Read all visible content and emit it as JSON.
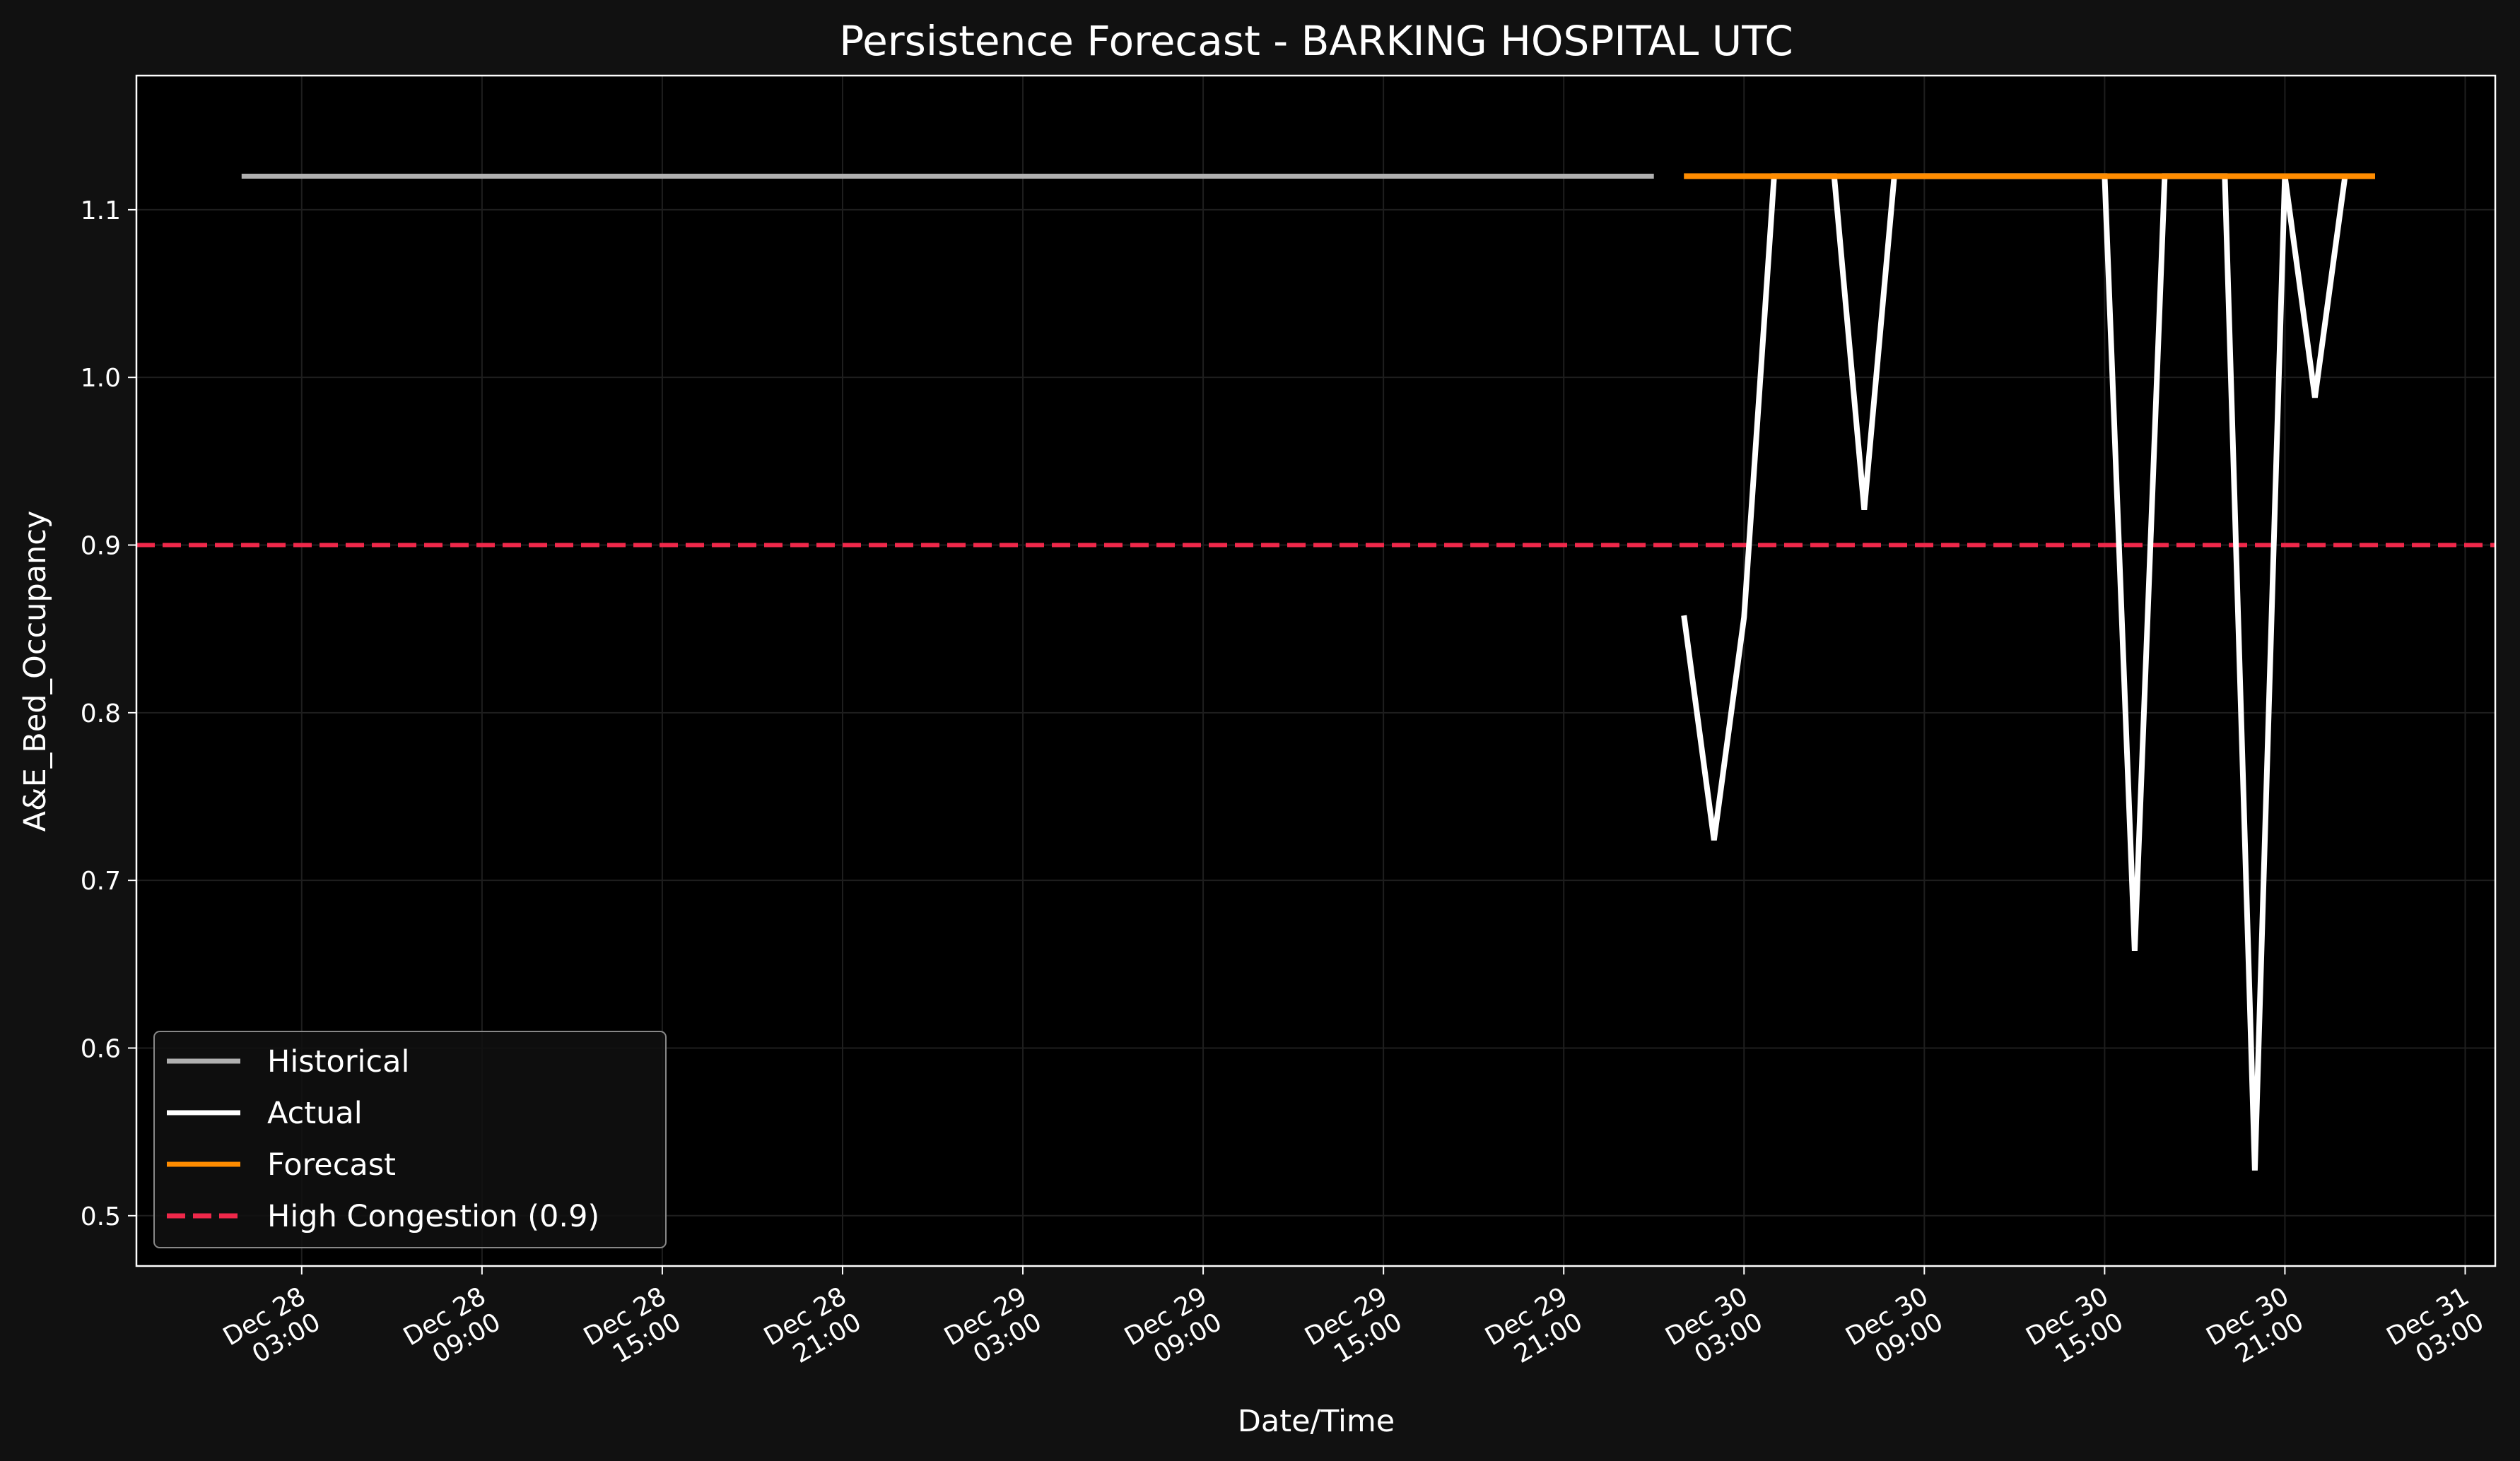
{
  "chart_data": {
    "type": "line",
    "title": "Persistence Forecast - BARKING HOSPITAL UTC",
    "xlabel": "Date/Time",
    "ylabel": "A&E_Bed_Occupancy",
    "ylim": [
      0.47,
      1.18
    ],
    "xlim": [
      "2023-12-27T21:30",
      "2023-12-31T04:00"
    ],
    "y_ticks": [
      0.5,
      0.6,
      0.7,
      0.8,
      0.9,
      1.0,
      1.1
    ],
    "x_ticks": [
      {
        "t": "2023-12-28T03:00",
        "label": [
          "Dec 28",
          "03:00"
        ]
      },
      {
        "t": "2023-12-28T09:00",
        "label": [
          "Dec 28",
          "09:00"
        ]
      },
      {
        "t": "2023-12-28T15:00",
        "label": [
          "Dec 28",
          "15:00"
        ]
      },
      {
        "t": "2023-12-28T21:00",
        "label": [
          "Dec 28",
          "21:00"
        ]
      },
      {
        "t": "2023-12-29T03:00",
        "label": [
          "Dec 29",
          "03:00"
        ]
      },
      {
        "t": "2023-12-29T09:00",
        "label": [
          "Dec 29",
          "09:00"
        ]
      },
      {
        "t": "2023-12-29T15:00",
        "label": [
          "Dec 29",
          "15:00"
        ]
      },
      {
        "t": "2023-12-29T21:00",
        "label": [
          "Dec 29",
          "21:00"
        ]
      },
      {
        "t": "2023-12-30T03:00",
        "label": [
          "Dec 30",
          "03:00"
        ]
      },
      {
        "t": "2023-12-30T09:00",
        "label": [
          "Dec 30",
          "09:00"
        ]
      },
      {
        "t": "2023-12-30T15:00",
        "label": [
          "Dec 30",
          "15:00"
        ]
      },
      {
        "t": "2023-12-30T21:00",
        "label": [
          "Dec 30",
          "21:00"
        ]
      },
      {
        "t": "2023-12-31T03:00",
        "label": [
          "Dec 31",
          "03:00"
        ]
      }
    ],
    "grid": true,
    "legend_position": "lower-left",
    "series": [
      {
        "name": "Historical",
        "color": "#b0b0b0",
        "points": [
          {
            "x": "2023-12-28T01:00",
            "y": 1.12
          },
          {
            "x": "2023-12-30T00:00",
            "y": 1.12
          }
        ]
      },
      {
        "name": "Actual",
        "color": "#ffffff",
        "points": [
          {
            "x": "2023-12-30T01:00",
            "y": 0.858
          },
          {
            "x": "2023-12-30T02:00",
            "y": 0.724
          },
          {
            "x": "2023-12-30T03:00",
            "y": 0.857
          },
          {
            "x": "2023-12-30T04:00",
            "y": 1.12
          },
          {
            "x": "2023-12-30T05:00",
            "y": 1.12
          },
          {
            "x": "2023-12-30T06:00",
            "y": 1.12
          },
          {
            "x": "2023-12-30T07:00",
            "y": 0.921
          },
          {
            "x": "2023-12-30T08:00",
            "y": 1.12
          },
          {
            "x": "2023-12-30T09:00",
            "y": 1.12
          },
          {
            "x": "2023-12-30T10:00",
            "y": 1.12
          },
          {
            "x": "2023-12-30T11:00",
            "y": 1.12
          },
          {
            "x": "2023-12-30T12:00",
            "y": 1.12
          },
          {
            "x": "2023-12-30T13:00",
            "y": 1.12
          },
          {
            "x": "2023-12-30T14:00",
            "y": 1.12
          },
          {
            "x": "2023-12-30T15:00",
            "y": 1.12
          },
          {
            "x": "2023-12-30T16:00",
            "y": 0.658
          },
          {
            "x": "2023-12-30T17:00",
            "y": 1.12
          },
          {
            "x": "2023-12-30T18:00",
            "y": 1.12
          },
          {
            "x": "2023-12-30T19:00",
            "y": 1.12
          },
          {
            "x": "2023-12-30T20:00",
            "y": 0.527
          },
          {
            "x": "2023-12-30T21:00",
            "y": 1.12
          },
          {
            "x": "2023-12-30T22:00",
            "y": 0.988
          },
          {
            "x": "2023-12-30T23:00",
            "y": 1.12
          }
        ]
      },
      {
        "name": "Forecast",
        "color": "#ff8c00",
        "points": [
          {
            "x": "2023-12-30T01:00",
            "y": 1.12
          },
          {
            "x": "2023-12-31T00:00",
            "y": 1.12
          }
        ]
      }
    ],
    "reference_lines": [
      {
        "name": "High Congestion (0.9)",
        "y": 0.9,
        "color": "#f0284a",
        "style": "dashed"
      }
    ]
  }
}
